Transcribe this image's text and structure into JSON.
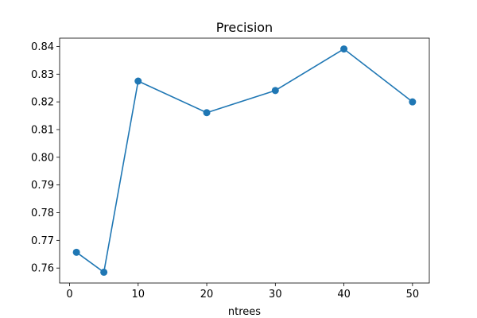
{
  "chart_data": {
    "type": "line",
    "title": "Precision",
    "xlabel": "ntrees",
    "ylabel": "",
    "x": [
      1,
      5,
      10,
      20,
      30,
      40,
      50
    ],
    "series": [
      {
        "values": [
          0.7657,
          0.7585,
          0.8275,
          0.8161,
          0.8241,
          0.8391,
          0.82
        ],
        "color": "#1f77b4",
        "marker": "circle"
      }
    ],
    "xlim": [
      -1.45,
      52.45
    ],
    "ylim": [
      0.7546,
      0.843
    ],
    "xticks": [
      0,
      10,
      20,
      30,
      40,
      50
    ],
    "xtick_labels": [
      "0",
      "10",
      "20",
      "30",
      "40",
      "50"
    ],
    "yticks": [
      0.76,
      0.77,
      0.78,
      0.79,
      0.8,
      0.81,
      0.82,
      0.83,
      0.84
    ],
    "ytick_labels": [
      "0.76",
      "0.77",
      "0.78",
      "0.79",
      "0.80",
      "0.81",
      "0.82",
      "0.83",
      "0.84"
    ],
    "grid": false,
    "legend": "none"
  }
}
